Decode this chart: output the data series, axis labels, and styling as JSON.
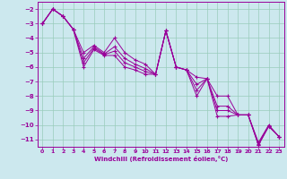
{
  "xlabel": "Windchill (Refroidissement éolien,°C)",
  "background_color": "#cce8ee",
  "grid_color": "#99ccbb",
  "line_color": "#990099",
  "xlim": [
    -0.5,
    23.5
  ],
  "ylim": [
    -11.5,
    -1.5
  ],
  "yticks": [
    -2,
    -3,
    -4,
    -5,
    -6,
    -7,
    -8,
    -9,
    -10,
    -11
  ],
  "xticks": [
    0,
    1,
    2,
    3,
    4,
    5,
    6,
    7,
    8,
    9,
    10,
    11,
    12,
    13,
    14,
    15,
    16,
    17,
    18,
    19,
    20,
    21,
    22,
    23
  ],
  "line_series": {
    "main": [
      [
        0,
        -3.0
      ],
      [
        1,
        -2.0
      ],
      [
        2,
        -2.5
      ],
      [
        3,
        -3.4
      ],
      [
        4,
        -5.0
      ],
      [
        5,
        -4.5
      ],
      [
        6,
        -5.0
      ],
      [
        7,
        -4.0
      ],
      [
        8,
        -5.0
      ],
      [
        9,
        -5.5
      ],
      [
        10,
        -5.8
      ],
      [
        11,
        -6.5
      ],
      [
        12,
        -3.5
      ],
      [
        13,
        -6.0
      ],
      [
        14,
        -6.2
      ],
      [
        15,
        -6.7
      ],
      [
        16,
        -6.8
      ],
      [
        17,
        -8.0
      ],
      [
        18,
        -8.0
      ],
      [
        19,
        -9.3
      ],
      [
        20,
        -9.3
      ],
      [
        21,
        -11.2
      ],
      [
        22,
        -10.0
      ],
      [
        23,
        -10.8
      ]
    ],
    "lower": [
      [
        0,
        -3.0
      ],
      [
        1,
        -2.0
      ],
      [
        2,
        -2.5
      ],
      [
        3,
        -3.4
      ],
      [
        4,
        -6.0
      ],
      [
        5,
        -4.8
      ],
      [
        6,
        -5.2
      ],
      [
        7,
        -5.2
      ],
      [
        8,
        -6.0
      ],
      [
        9,
        -6.2
      ],
      [
        10,
        -6.5
      ],
      [
        11,
        -6.5
      ],
      [
        12,
        -3.5
      ],
      [
        13,
        -6.0
      ],
      [
        14,
        -6.2
      ],
      [
        15,
        -8.0
      ],
      [
        16,
        -6.8
      ],
      [
        17,
        -9.4
      ],
      [
        18,
        -9.4
      ],
      [
        19,
        -9.3
      ],
      [
        20,
        -9.3
      ],
      [
        21,
        -11.4
      ],
      [
        22,
        -10.1
      ],
      [
        23,
        -10.8
      ]
    ],
    "mid1": [
      [
        0,
        -3.0
      ],
      [
        1,
        -2.0
      ],
      [
        2,
        -2.5
      ],
      [
        3,
        -3.4
      ],
      [
        4,
        -5.4
      ],
      [
        5,
        -4.6
      ],
      [
        6,
        -5.1
      ],
      [
        7,
        -4.6
      ],
      [
        8,
        -5.4
      ],
      [
        9,
        -5.8
      ],
      [
        10,
        -6.1
      ],
      [
        11,
        -6.5
      ],
      [
        12,
        -3.5
      ],
      [
        13,
        -6.0
      ],
      [
        14,
        -6.2
      ],
      [
        15,
        -7.2
      ],
      [
        16,
        -6.8
      ],
      [
        17,
        -8.7
      ],
      [
        18,
        -8.7
      ],
      [
        19,
        -9.3
      ],
      [
        20,
        -9.3
      ],
      [
        21,
        -11.3
      ],
      [
        22,
        -10.05
      ],
      [
        23,
        -10.8
      ]
    ],
    "mid2": [
      [
        0,
        -3.0
      ],
      [
        1,
        -2.0
      ],
      [
        2,
        -2.5
      ],
      [
        3,
        -3.4
      ],
      [
        4,
        -5.7
      ],
      [
        5,
        -4.7
      ],
      [
        6,
        -5.15
      ],
      [
        7,
        -4.9
      ],
      [
        8,
        -5.7
      ],
      [
        9,
        -6.0
      ],
      [
        10,
        -6.3
      ],
      [
        11,
        -6.5
      ],
      [
        12,
        -3.5
      ],
      [
        13,
        -6.0
      ],
      [
        14,
        -6.2
      ],
      [
        15,
        -7.6
      ],
      [
        16,
        -6.8
      ],
      [
        17,
        -9.0
      ],
      [
        18,
        -9.0
      ],
      [
        19,
        -9.3
      ],
      [
        20,
        -9.3
      ],
      [
        21,
        -11.35
      ],
      [
        22,
        -10.07
      ],
      [
        23,
        -10.8
      ]
    ]
  }
}
